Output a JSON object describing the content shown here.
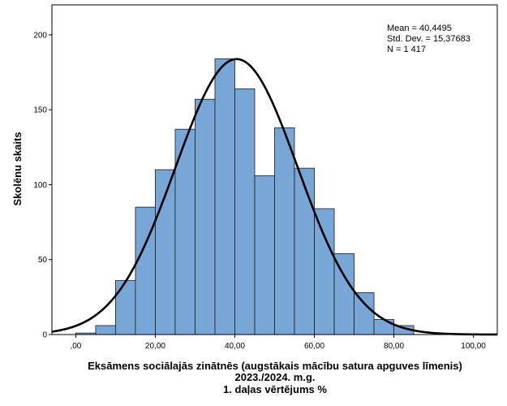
{
  "chart_data": {
    "type": "bar",
    "variant": "histogram",
    "bin_width": 5,
    "bins": [
      {
        "from": 0,
        "to": 5,
        "count": 1
      },
      {
        "from": 5,
        "to": 10,
        "count": 6
      },
      {
        "from": 10,
        "to": 15,
        "count": 36
      },
      {
        "from": 15,
        "to": 20,
        "count": 85
      },
      {
        "from": 20,
        "to": 25,
        "count": 110
      },
      {
        "from": 25,
        "to": 30,
        "count": 137
      },
      {
        "from": 30,
        "to": 35,
        "count": 157
      },
      {
        "from": 35,
        "to": 40,
        "count": 184
      },
      {
        "from": 40,
        "to": 45,
        "count": 164
      },
      {
        "from": 45,
        "to": 50,
        "count": 106
      },
      {
        "from": 50,
        "to": 55,
        "count": 138
      },
      {
        "from": 55,
        "to": 60,
        "count": 111
      },
      {
        "from": 60,
        "to": 65,
        "count": 84
      },
      {
        "from": 65,
        "to": 70,
        "count": 54
      },
      {
        "from": 70,
        "to": 75,
        "count": 28
      },
      {
        "from": 75,
        "to": 80,
        "count": 10
      },
      {
        "from": 80,
        "to": 85,
        "count": 6
      }
    ],
    "normal_curve": {
      "mean": 40.4495,
      "std_dev": 15.37683,
      "n": 1417
    },
    "stats_text": [
      "Mean = 40,4495",
      "Std. Dev. = 15,37683",
      "N = 1 417"
    ],
    "xlabel": [
      "Eksāmens sociālajās zinātnēs (augstākais mācību satura apguves līmenis)",
      "2023./2024. m.g.",
      "1. daļas vērtējums %"
    ],
    "ylabel": "Skolēnu skaits",
    "xlim": [
      -6,
      106
    ],
    "ylim": [
      0,
      220
    ],
    "x_ticks": [
      0,
      20,
      40,
      60,
      80,
      100
    ],
    "x_tick_labels": [
      ",00",
      "20,00",
      "40,00",
      "60,00",
      "80,00",
      "100,00"
    ],
    "y_ticks": [
      0,
      50,
      100,
      150,
      200
    ],
    "y_tick_labels": [
      "0",
      "50",
      "100",
      "150",
      "200"
    ],
    "grid": false,
    "colors": {
      "bar_fill": "#78a6d6",
      "bar_stroke": "#1a1a1a",
      "curve": "#000000"
    }
  }
}
